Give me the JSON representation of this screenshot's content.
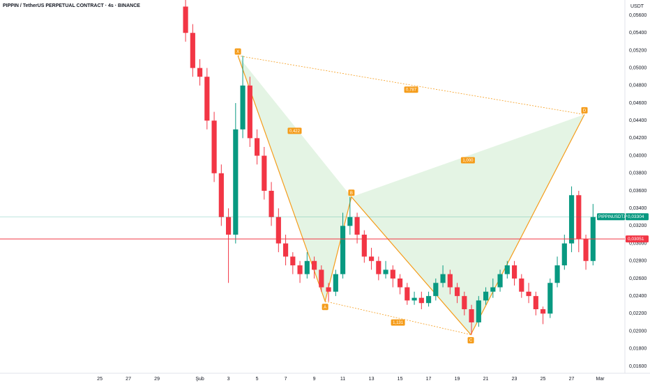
{
  "chart_data": {
    "type": "candlestick",
    "title": "PIPPIN / TetherUS PERPETUAL CONTRACT · 4s · BINANCE",
    "currency": "USDT",
    "up_color": "#089981",
    "down_color": "#f23645",
    "xlim": [
      18.02,
      61.68
    ],
    "xticks": [
      25,
      27,
      29,
      {
        "value": 32,
        "label": "Şub"
      },
      {
        "value": 34,
        "label": "3"
      },
      {
        "value": 36,
        "label": "5"
      },
      {
        "value": 38,
        "label": "7"
      },
      {
        "value": 40,
        "label": "9"
      },
      {
        "value": 42,
        "label": "11"
      },
      {
        "value": 44,
        "label": "13"
      },
      {
        "value": 46,
        "label": "15"
      },
      {
        "value": 48,
        "label": "17"
      },
      {
        "value": 50,
        "label": "19"
      },
      {
        "value": 52,
        "label": "21"
      },
      {
        "value": 54,
        "label": "23"
      },
      {
        "value": 56,
        "label": "25"
      },
      {
        "value": 58,
        "label": "27"
      },
      {
        "value": 60,
        "label": "Mar"
      }
    ],
    "ylim": [
      0.0152,
      0.05775
    ],
    "yticks": [
      {
        "value": 0.016,
        "label": "0,01600"
      },
      {
        "value": 0.018,
        "label": "0,01800"
      },
      {
        "value": 0.02,
        "label": "0,02000"
      },
      {
        "value": 0.022,
        "label": "0,02200"
      },
      {
        "value": 0.024,
        "label": "0,02400"
      },
      {
        "value": 0.026,
        "label": "0,02600"
      },
      {
        "value": 0.028,
        "label": "0,02800"
      },
      {
        "value": 0.03,
        "label": "0,03000"
      },
      {
        "value": 0.032,
        "label": "0,03200"
      },
      {
        "value": 0.034,
        "label": "0,03400"
      },
      {
        "value": 0.036,
        "label": "0,03600"
      },
      {
        "value": 0.038,
        "label": "0,03800"
      },
      {
        "value": 0.04,
        "label": "0,04000"
      },
      {
        "value": 0.042,
        "label": "0,04200"
      },
      {
        "value": 0.044,
        "label": "0,04400"
      },
      {
        "value": 0.046,
        "label": "0,04600"
      },
      {
        "value": 0.048,
        "label": "0,04800"
      },
      {
        "value": 0.05,
        "label": "0,05000"
      },
      {
        "value": 0.052,
        "label": "0,05200"
      },
      {
        "value": 0.054,
        "label": "0,05400"
      },
      {
        "value": 0.056,
        "label": "0,05600"
      }
    ],
    "x": [
      31,
      31.5,
      32,
      32.5,
      33,
      33.5,
      34,
      34.5,
      35,
      35.5,
      36,
      36.5,
      37,
      37.5,
      38,
      38.5,
      39,
      39.5,
      40,
      40.5,
      41,
      41.5,
      42,
      42.5,
      43,
      43.5,
      44,
      44.5,
      45,
      45.5,
      46,
      46.5,
      47,
      47.5,
      48,
      48.5,
      49,
      49.5,
      50,
      50.5,
      51,
      51.5,
      52,
      52.5,
      53,
      53.5,
      54,
      54.5,
      55,
      55.5,
      56,
      56.5,
      57,
      57.5,
      58,
      58.5,
      59,
      59.5
    ],
    "open": [
      0.057,
      0.054,
      0.05,
      0.049,
      0.044,
      0.038,
      0.033,
      0.031,
      0.043,
      0.048,
      0.042,
      0.04,
      0.036,
      0.033,
      0.03,
      0.0285,
      0.0275,
      0.0265,
      0.028,
      0.027,
      0.025,
      0.0245,
      0.0265,
      0.032,
      0.033,
      0.031,
      0.0285,
      0.028,
      0.0265,
      0.027,
      0.026,
      0.025,
      0.0235,
      0.0238,
      0.0232,
      0.024,
      0.0255,
      0.0265,
      0.025,
      0.024,
      0.0225,
      0.021,
      0.0235,
      0.0245,
      0.025,
      0.0265,
      0.0275,
      0.026,
      0.0245,
      0.024,
      0.0225,
      0.022,
      0.0255,
      0.0275,
      0.03,
      0.0355,
      0.0305,
      0.028
    ],
    "high": [
      0.058,
      0.055,
      0.051,
      0.05,
      0.045,
      0.039,
      0.034,
      0.046,
      0.0514,
      0.049,
      0.043,
      0.041,
      0.037,
      0.034,
      0.031,
      0.029,
      0.028,
      0.029,
      0.0285,
      0.0275,
      0.0255,
      0.027,
      0.0335,
      0.0353,
      0.0335,
      0.0315,
      0.0295,
      0.0285,
      0.028,
      0.0275,
      0.0265,
      0.0255,
      0.0245,
      0.0245,
      0.0245,
      0.026,
      0.0275,
      0.027,
      0.0255,
      0.0245,
      0.023,
      0.024,
      0.025,
      0.026,
      0.027,
      0.028,
      0.028,
      0.0265,
      0.0255,
      0.0245,
      0.0228,
      0.026,
      0.0285,
      0.031,
      0.0365,
      0.036,
      0.031,
      0.0345
    ],
    "low": [
      0.053,
      0.049,
      0.048,
      0.043,
      0.037,
      0.032,
      0.0255,
      0.03,
      0.042,
      0.041,
      0.039,
      0.035,
      0.032,
      0.029,
      0.0275,
      0.0265,
      0.0255,
      0.026,
      0.026,
      0.0245,
      0.0234,
      0.024,
      0.026,
      0.031,
      0.03,
      0.0278,
      0.027,
      0.0258,
      0.026,
      0.025,
      0.0242,
      0.023,
      0.023,
      0.0225,
      0.0228,
      0.0235,
      0.025,
      0.0242,
      0.0232,
      0.0218,
      0.0196,
      0.0205,
      0.023,
      0.0238,
      0.0245,
      0.026,
      0.0252,
      0.0238,
      0.0232,
      0.0218,
      0.0208,
      0.0215,
      0.025,
      0.027,
      0.029,
      0.029,
      0.027,
      0.0275
    ],
    "close": [
      0.054,
      0.05,
      0.049,
      0.044,
      0.038,
      0.033,
      0.031,
      0.043,
      0.048,
      0.042,
      0.04,
      0.036,
      0.033,
      0.03,
      0.0285,
      0.0275,
      0.0265,
      0.028,
      0.027,
      0.025,
      0.0245,
      0.0265,
      0.032,
      0.033,
      0.031,
      0.0285,
      0.028,
      0.0265,
      0.027,
      0.026,
      0.025,
      0.0235,
      0.0238,
      0.0232,
      0.024,
      0.0255,
      0.0265,
      0.025,
      0.024,
      0.0225,
      0.021,
      0.0235,
      0.0245,
      0.025,
      0.0265,
      0.0275,
      0.026,
      0.0245,
      0.024,
      0.0225,
      0.022,
      0.0255,
      0.0275,
      0.03,
      0.0355,
      0.0305,
      0.028,
      0.033
    ],
    "pattern": {
      "color": "#f59c1a",
      "fill": "#d9efd9",
      "points": [
        {
          "label": "X",
          "x": 34.66,
          "y": 0.0514
        },
        {
          "label": "A",
          "x": 40.76,
          "y": 0.0234
        },
        {
          "label": "B",
          "x": 42.6,
          "y": 0.0353
        },
        {
          "label": "C",
          "x": 50.95,
          "y": 0.0196
        },
        {
          "label": "D",
          "x": 58.9,
          "y": 0.0447
        }
      ],
      "ratios": [
        "0,422",
        "0,787",
        "1,000",
        "1,131"
      ]
    },
    "price_lines": [
      {
        "name": "PIPPINUSDT.P",
        "value": 0.03304,
        "value_label": "0,03304",
        "color": "#089981"
      },
      {
        "value": 0.03051,
        "value_label": "0,03051",
        "color": "#f23645"
      }
    ]
  }
}
